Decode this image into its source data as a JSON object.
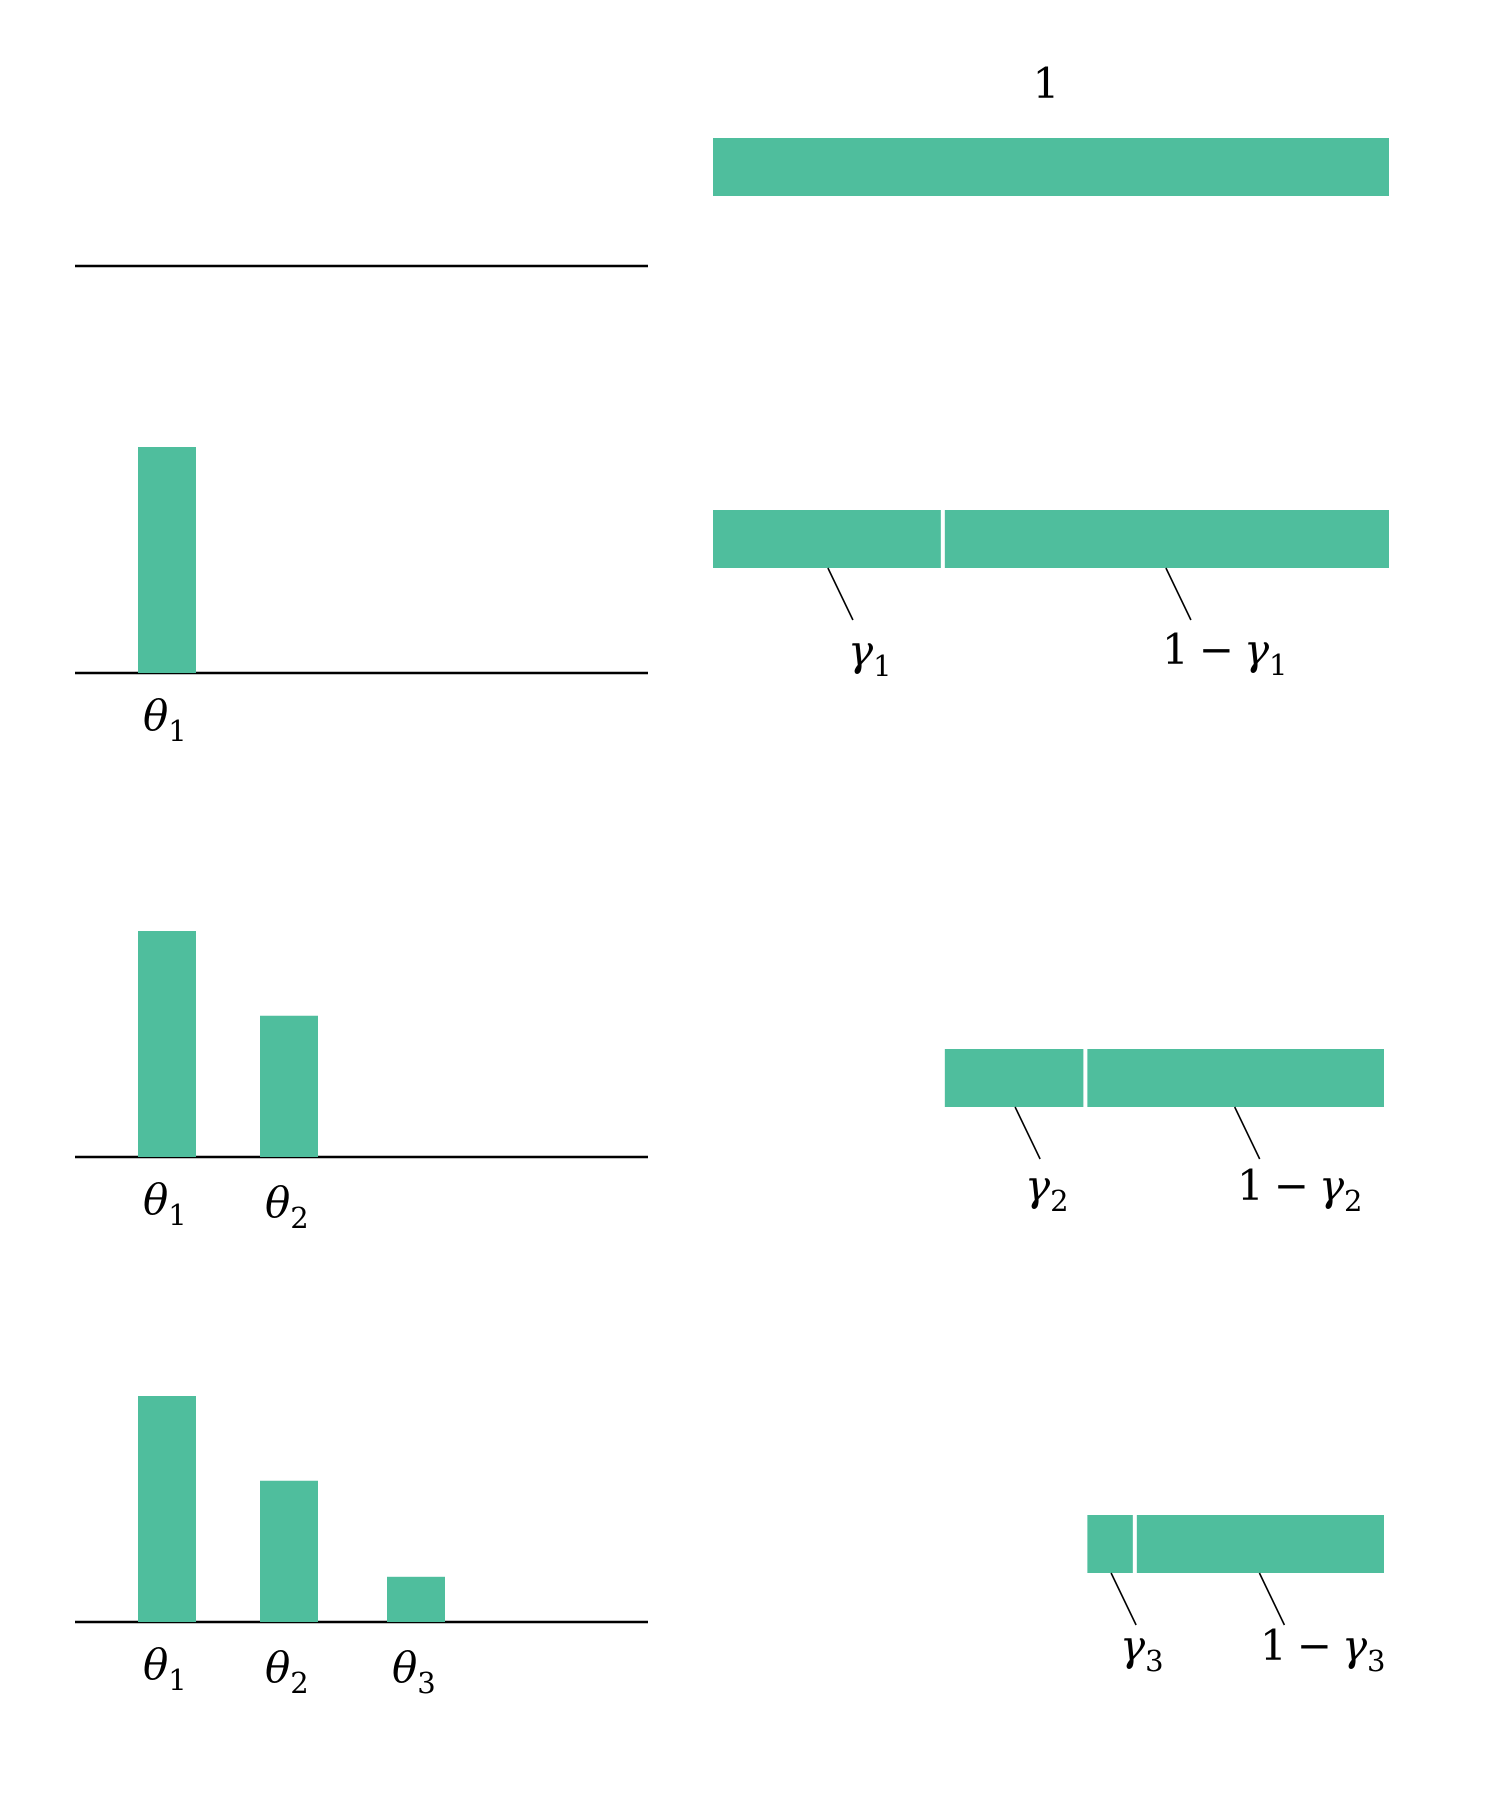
{
  "colors": {
    "accent": "#4fbe9d",
    "ink": "#000000"
  },
  "top_label": "1",
  "theta": {
    "symbol": "θ",
    "subscripts": [
      "1",
      "2",
      "3"
    ]
  },
  "gamma": {
    "symbol": "γ",
    "one": "1",
    "minus": "−",
    "subscripts": [
      "1",
      "2",
      "3"
    ]
  },
  "levels": [
    {
      "gamma_fraction": null,
      "bar_fractions": []
    },
    {
      "gamma_fraction": 0.34,
      "bar_fractions": [
        0.4
      ]
    },
    {
      "gamma_fraction": 0.32,
      "bar_fractions": [
        0.4,
        0.25
      ]
    },
    {
      "gamma_fraction": 0.16,
      "bar_fractions": [
        0.4,
        0.25,
        0.08
      ]
    }
  ]
}
